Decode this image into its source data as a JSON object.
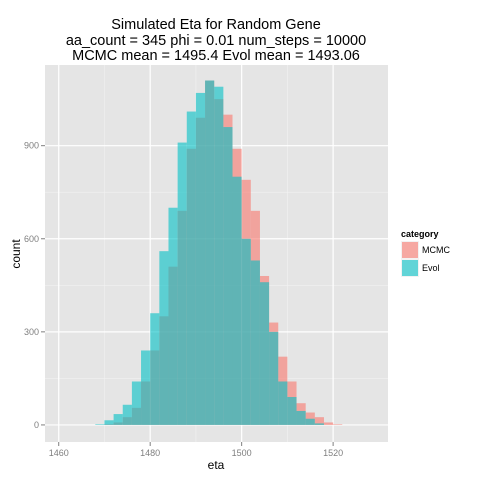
{
  "chart_data": {
    "type": "histogram",
    "title_lines": [
      "Simulated Eta for Random Gene",
      "aa_count = 345 phi = 0.01 num_steps = 10000",
      "MCMC mean = 1495.4 Evol mean = 1493.06"
    ],
    "xlabel": "eta",
    "ylabel": "count",
    "xlim": [
      1457,
      1532
    ],
    "ylim": [
      -55,
      1160
    ],
    "x_ticks": [
      1460,
      1480,
      1500,
      1520
    ],
    "y_ticks": [
      0,
      300,
      600,
      900
    ],
    "x_tick_labels": [
      "1460",
      "1480",
      "1500",
      "1520"
    ],
    "y_tick_labels": [
      "0",
      "300",
      "600",
      "900"
    ],
    "bin_width": 2,
    "bin_edges_start": 1468,
    "legend": {
      "title": "category",
      "position": "right",
      "entries": [
        {
          "name": "MCMC",
          "color": "#f8766d"
        },
        {
          "name": "Evol",
          "color": "#00bfc4"
        }
      ]
    },
    "series": [
      {
        "name": "MCMC",
        "color": "#f8766d",
        "values": [
          0,
          2,
          8,
          25,
          55,
          140,
          240,
          350,
          510,
          690,
          890,
          990,
          1110,
          1050,
          1000,
          890,
          790,
          690,
          480,
          330,
          220,
          140,
          70,
          40,
          25,
          8,
          2,
          0
        ]
      },
      {
        "name": "Evol",
        "color": "#00bfc4",
        "values": [
          2,
          15,
          35,
          65,
          140,
          240,
          360,
          560,
          700,
          910,
          1010,
          1070,
          1110,
          1090,
          960,
          800,
          600,
          530,
          460,
          300,
          140,
          90,
          45,
          20,
          5,
          0,
          0,
          0
        ]
      }
    ]
  }
}
